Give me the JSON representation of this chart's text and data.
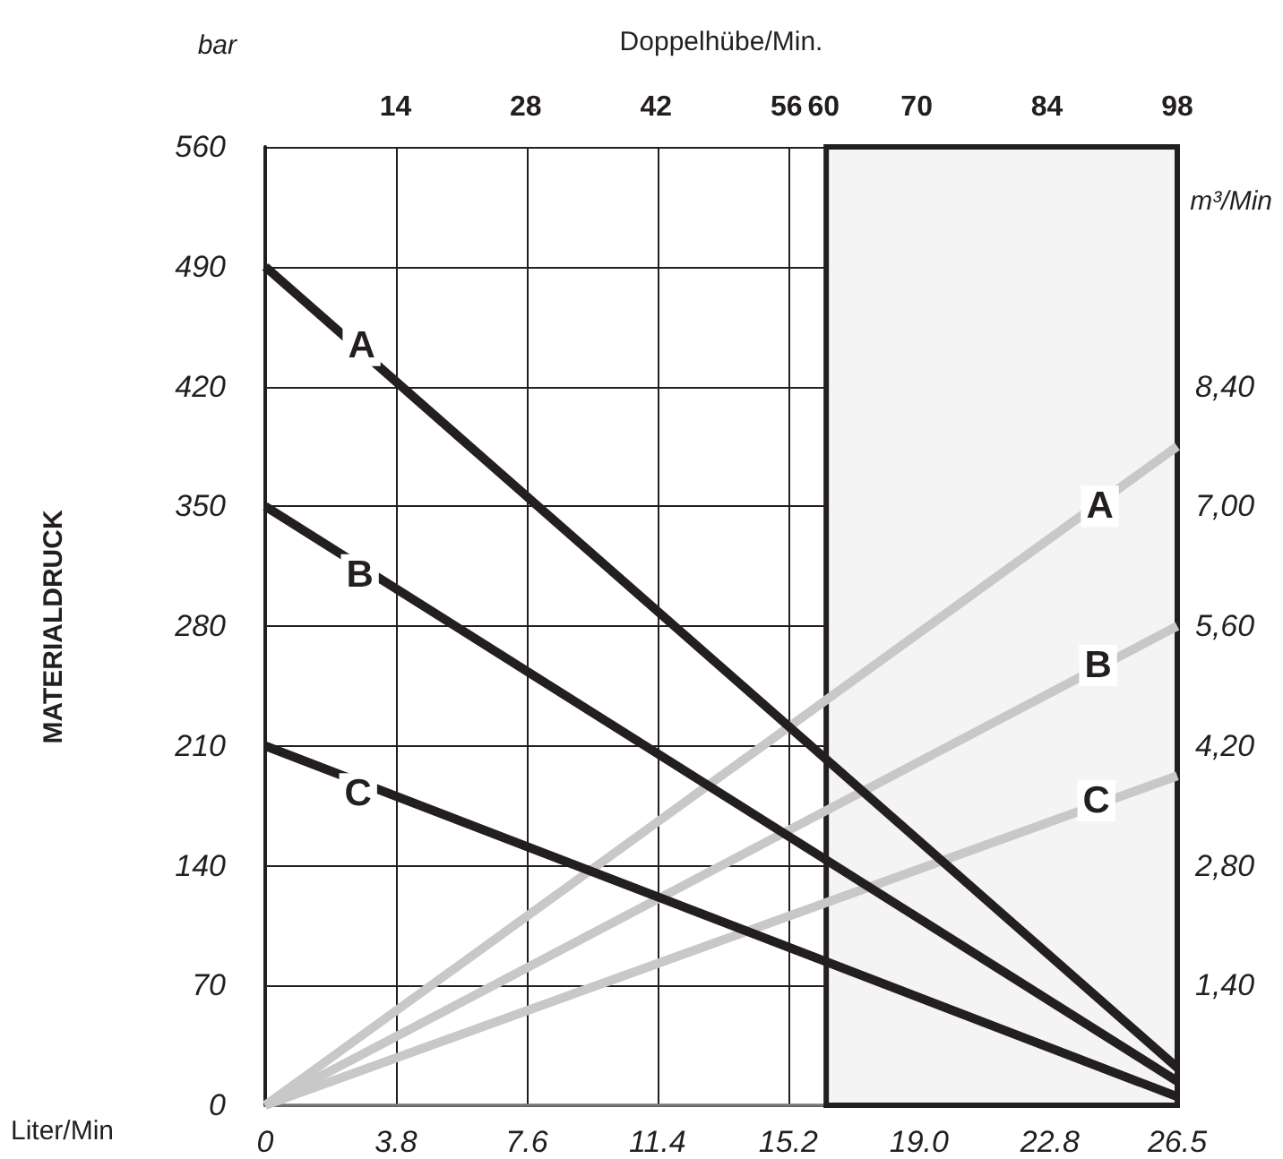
{
  "chart_data": {
    "type": "line",
    "xlabel": "Liter/Min",
    "x2label": "Doppelhübe/Min.",
    "ylabel": "MATERIALDRUCK",
    "y2label": "m³/Min",
    "x": [
      0,
      26.5
    ],
    "series": [
      {
        "color": "#c8c8c8",
        "axis": "y2",
        "values": [
          0,
          7.7
        ]
      },
      {
        "color": "#c8c8c8",
        "axis": "y2",
        "values": [
          0,
          5.6
        ]
      },
      {
        "color": "#c8c8c8",
        "axis": "y2",
        "values": [
          0,
          3.85
        ]
      },
      {
        "color": "#231f20",
        "values": [
          490,
          22
        ]
      },
      {
        "color": "#231f20",
        "values": [
          350,
          14
        ]
      },
      {
        "color": "#231f20",
        "values": [
          210,
          5
        ]
      }
    ],
    "xlim": [
      0,
      26.5
    ],
    "xticks": [
      0,
      3.8,
      7.6,
      11.4,
      15.2,
      {
        "value": 19,
        "label": "19.0"
      },
      22.8,
      26.5
    ],
    "x2lim": [
      0,
      98
    ],
    "x2ticks": [
      14,
      28,
      42,
      56,
      60,
      70,
      84,
      98
    ],
    "ylim": [
      0,
      560
    ],
    "yticks": [
      0,
      70,
      140,
      210,
      280,
      350,
      420,
      490,
      560
    ],
    "y2lim": [
      0,
      11.2
    ],
    "y2ticks": [
      {
        "value": 1.4,
        "label": "1,40"
      },
      {
        "value": 2.8,
        "label": "2,80"
      },
      {
        "value": 4.2,
        "label": "4,20"
      },
      {
        "value": 5.6,
        "label": "5,60"
      },
      {
        "value": 7,
        "label": "7,00"
      },
      {
        "value": 8.4,
        "label": "8,40"
      }
    ],
    "bands": [
      {
        "axis": "x",
        "from": 16.3,
        "to": 26.5,
        "color": "#f4f4f4"
      }
    ],
    "annotations": [
      "bar",
      {
        "text": "A",
        "x": 2.8,
        "y": 444
      },
      {
        "text": "B",
        "x": 2.75,
        "y": 310
      },
      {
        "text": "C",
        "x": 2.7,
        "y": 182
      },
      {
        "text": "A",
        "x": 24.25,
        "y": 350
      },
      {
        "text": "B",
        "x": 24.2,
        "y": 257
      },
      {
        "text": "C",
        "x": 24.15,
        "y": 178
      }
    ],
    "grid": true,
    "marker": "none",
    "line_style": "solid"
  }
}
